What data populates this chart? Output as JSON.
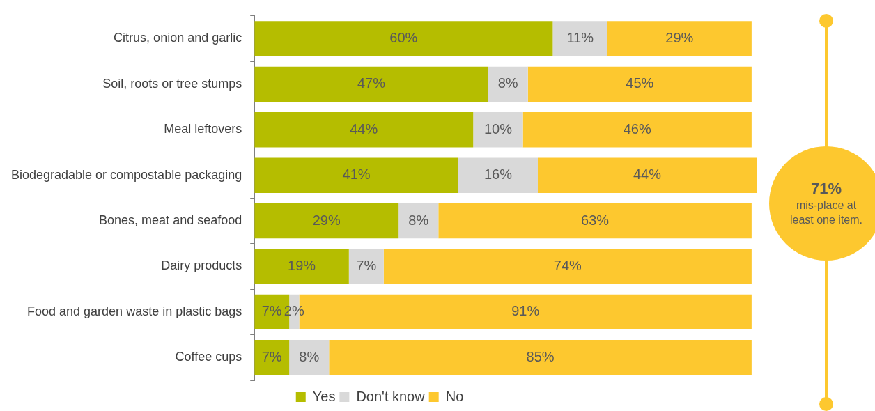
{
  "chart_data": {
    "type": "bar",
    "orientation": "horizontal",
    "stacked": true,
    "xlim": [
      0,
      101
    ],
    "tick_labels": "y",
    "grid": false,
    "legend": "bottom",
    "categories": [
      "Citrus, onion and garlic",
      "Soil, roots or tree stumps",
      "Meal leftovers",
      "Biodegradable or compostable packaging",
      "Bones, meat and seafood",
      "Dairy products",
      "Food and garden waste in plastic bags",
      "Coffee cups"
    ],
    "series": [
      {
        "name": "Yes",
        "color": "#b5bd00",
        "values": [
          60,
          47,
          44,
          41,
          29,
          19,
          7,
          7
        ],
        "value_labels": [
          "60%",
          "47%",
          "44%",
          "41%",
          "29%",
          "19%",
          "7%",
          "7%"
        ]
      },
      {
        "name": "Don't know",
        "color": "#d9d9d9",
        "values": [
          11,
          8,
          10,
          16,
          8,
          7,
          2,
          8
        ],
        "value_labels": [
          "11%",
          "8%",
          "10%",
          "16%",
          "8%",
          "7%",
          "2%",
          "8%"
        ]
      },
      {
        "name": "No",
        "color": "#fdc82f",
        "values": [
          29,
          45,
          46,
          44,
          63,
          74,
          91,
          85
        ],
        "value_labels": [
          "29%",
          "45%",
          "46%",
          "44%",
          "63%",
          "74%",
          "91%",
          "85%"
        ]
      }
    ],
    "annotations": [
      "71%",
      "mis-place at least one item."
    ]
  }
}
